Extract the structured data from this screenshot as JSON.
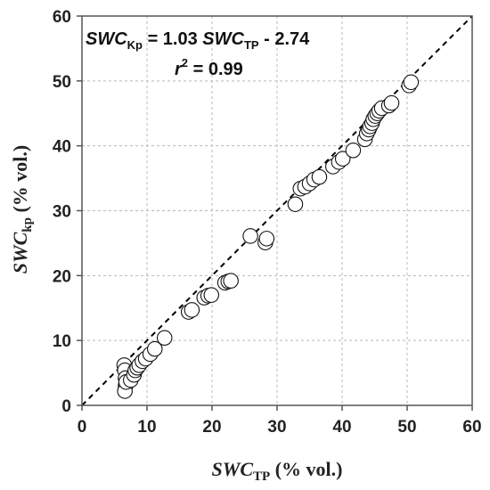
{
  "chart_data": {
    "type": "scatter",
    "xlabel": {
      "main": "SWC",
      "sub": "TP",
      "unit": " (% vol.)"
    },
    "ylabel": {
      "main": "SWC",
      "sub": "kp",
      "unit": " (% vol.)"
    },
    "xlim": [
      0,
      60
    ],
    "ylim": [
      0,
      60
    ],
    "xticks": [
      "0",
      "10",
      "20",
      "30",
      "40",
      "50",
      "60"
    ],
    "yticks": [
      "0",
      "10",
      "20",
      "30",
      "40",
      "50",
      "60"
    ],
    "grid": true,
    "annotation": {
      "line1": {
        "a": "SWC",
        "a_sub": "Kp",
        "b": " = 1.03 ",
        "c": "SWC",
        "c_sub": "TP",
        "d": " - 2.74"
      },
      "line2": {
        "r": "r",
        "sup": "2",
        "rest": " = 0.99"
      }
    },
    "reference_line": {
      "type": "1:1",
      "style": "dashed"
    },
    "series": [
      {
        "points": [
          [
            6.5,
            6.2
          ],
          [
            6.6,
            5.4
          ],
          [
            6.7,
            4.2
          ],
          [
            6.7,
            3.0
          ],
          [
            6.6,
            2.2
          ],
          [
            6.8,
            3.6
          ],
          [
            7.5,
            3.9
          ],
          [
            8.0,
            4.7
          ],
          [
            8.2,
            5.4
          ],
          [
            8.5,
            5.8
          ],
          [
            8.8,
            6.2
          ],
          [
            9.3,
            6.8
          ],
          [
            9.8,
            7.2
          ],
          [
            10.5,
            7.9
          ],
          [
            11.2,
            8.7
          ],
          [
            12.7,
            10.4
          ],
          [
            16.4,
            14.4
          ],
          [
            16.9,
            14.7
          ],
          [
            18.8,
            16.6
          ],
          [
            19.4,
            16.9
          ],
          [
            19.9,
            17.0
          ],
          [
            22.0,
            18.9
          ],
          [
            22.5,
            19.1
          ],
          [
            22.9,
            19.2
          ],
          [
            25.9,
            26.1
          ],
          [
            28.2,
            25.1
          ],
          [
            28.4,
            25.7
          ],
          [
            32.8,
            31.0
          ],
          [
            33.6,
            33.4
          ],
          [
            34.3,
            33.7
          ],
          [
            35.0,
            34.2
          ],
          [
            35.7,
            34.8
          ],
          [
            36.5,
            35.2
          ],
          [
            38.6,
            36.8
          ],
          [
            39.5,
            37.5
          ],
          [
            40.1,
            38.0
          ],
          [
            41.7,
            39.3
          ],
          [
            43.5,
            41.0
          ],
          [
            43.8,
            41.9
          ],
          [
            44.1,
            42.5
          ],
          [
            44.3,
            43.0
          ],
          [
            44.6,
            43.5
          ],
          [
            44.8,
            44.1
          ],
          [
            45.1,
            44.6
          ],
          [
            45.4,
            45.0
          ],
          [
            45.7,
            45.4
          ],
          [
            46.1,
            45.8
          ],
          [
            47.2,
            46.2
          ],
          [
            47.6,
            46.6
          ],
          [
            50.3,
            49.3
          ],
          [
            50.6,
            49.8
          ]
        ]
      }
    ]
  }
}
